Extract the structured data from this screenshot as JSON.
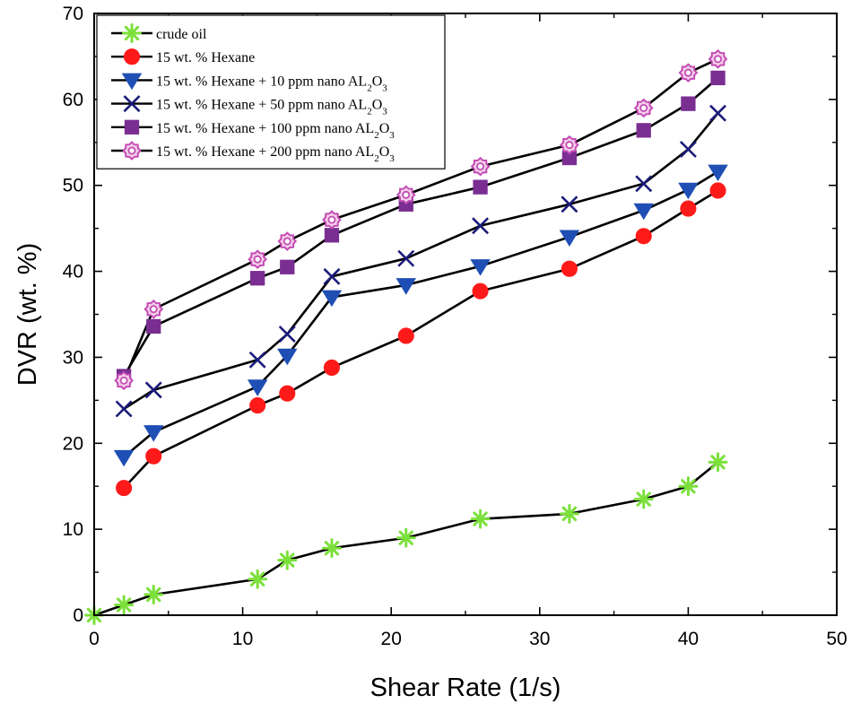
{
  "chart_data": {
    "type": "line",
    "title": "",
    "xlabel": "Shear Rate (1/s)",
    "ylabel": "DVR (wt. %)",
    "xlim": [
      0,
      50
    ],
    "ylim": [
      0,
      70
    ],
    "xticks": [
      0,
      10,
      20,
      30,
      40,
      50
    ],
    "yticks": [
      0,
      10,
      20,
      30,
      40,
      50,
      60,
      70
    ],
    "grid": false,
    "legend_position": "top-left",
    "series": [
      {
        "name": "crude oil",
        "legend_text": "crude oil",
        "marker": "asterisk",
        "color": "#7be03a",
        "x": [
          0,
          2,
          4,
          11,
          13,
          16,
          21,
          26,
          32,
          37,
          40,
          42
        ],
        "values": [
          0,
          1.2,
          2.4,
          4.2,
          6.4,
          7.8,
          9.0,
          11.2,
          11.8,
          13.5,
          15.0,
          17.8
        ]
      },
      {
        "name": "15 wt. % Hexane",
        "legend_text": "15 wt. % Hexane",
        "marker": "circle",
        "color": "#ff1a1a",
        "x": [
          2,
          4,
          11,
          13,
          16,
          21,
          26,
          32,
          37,
          40,
          42
        ],
        "values": [
          14.8,
          18.5,
          24.4,
          25.8,
          28.8,
          32.5,
          37.7,
          40.3,
          44.1,
          47.3,
          49.4
        ]
      },
      {
        "name": "15 wt. % Hexane + 10 ppm nano AL2O3",
        "legend_text": "15 wt. % Hexane + 10 ppm nano AL",
        "marker": "triangle-down",
        "color": "#1f4fb4",
        "x": [
          2,
          4,
          11,
          13,
          16,
          21,
          26,
          32,
          37,
          40,
          42
        ],
        "values": [
          18.4,
          21.3,
          26.6,
          30.2,
          37.0,
          38.4,
          40.6,
          44.0,
          47.1,
          49.5,
          51.6
        ]
      },
      {
        "name": "15 wt. % Hexane + 50 ppm nano AL2O3",
        "legend_text": "15 wt. % Hexane + 50 ppm nano AL",
        "marker": "x",
        "color": "#1b1b7a",
        "x": [
          2,
          4,
          11,
          13,
          16,
          21,
          26,
          32,
          37,
          40,
          42
        ],
        "values": [
          24.0,
          26.2,
          29.7,
          32.7,
          39.4,
          41.5,
          45.3,
          47.8,
          50.2,
          54.2,
          58.4
        ]
      },
      {
        "name": "15 wt. % Hexane + 100 ppm nano AL2O3",
        "legend_text": "15 wt. % Hexane + 100 ppm nano AL",
        "marker": "square",
        "color": "#7a2e92",
        "x": [
          2,
          4,
          11,
          13,
          16,
          21,
          26,
          32,
          37,
          40,
          42
        ],
        "values": [
          27.8,
          33.6,
          39.2,
          40.5,
          44.2,
          47.8,
          49.8,
          53.2,
          56.4,
          59.5,
          62.5
        ]
      },
      {
        "name": "15 wt. % Hexane + 200 ppm nano AL2O3",
        "legend_text": "15 wt. % Hexane + 200 ppm nano AL",
        "marker": "hollow-flower",
        "color": "#c44ab4",
        "x": [
          2,
          4,
          11,
          13,
          16,
          21,
          26,
          32,
          37,
          40,
          42
        ],
        "values": [
          27.3,
          35.6,
          41.4,
          43.5,
          46.0,
          48.9,
          52.2,
          54.7,
          59.0,
          63.1,
          64.7
        ]
      }
    ],
    "legend_subscript": "2",
    "legend_suffix": "O",
    "legend_subscript_2": "3"
  }
}
